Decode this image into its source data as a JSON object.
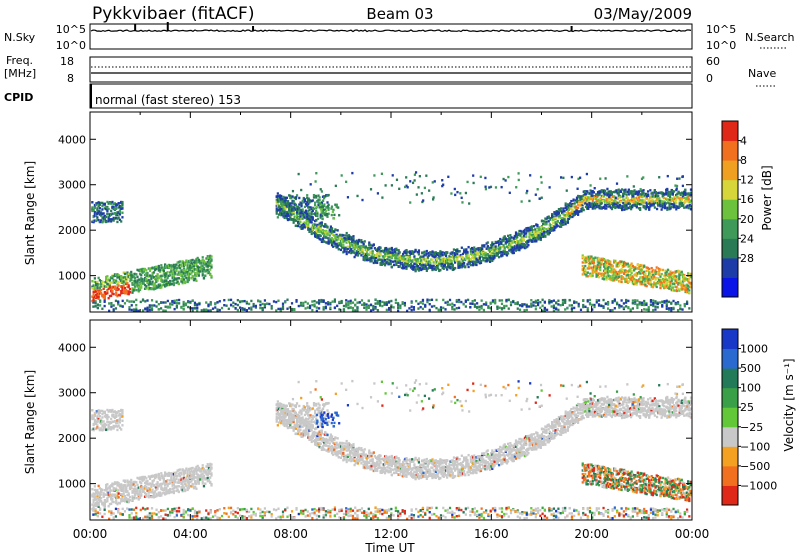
{
  "header": {
    "station": "Pykkvibaer (fitACF)",
    "beam": "Beam 03",
    "date": "03/May/2009"
  },
  "nsky_panel": {
    "left_label": "N.Sky",
    "right_label": "N.Search",
    "y_ticks": [
      "10^5",
      "10^0"
    ]
  },
  "freq_panel": {
    "left_label_line1": "Freq.",
    "left_label_line2": "[MHz]",
    "right_label": "Nave",
    "left_ticks": [
      "18",
      "8"
    ],
    "right_ticks": [
      "60",
      "0"
    ]
  },
  "cpid_panel": {
    "label": "CPID",
    "mode_text": "normal (fast stereo) 153"
  },
  "chart_data": [
    {
      "type": "heatmap",
      "title": "",
      "ylabel": "Slant Range [km]",
      "xlabel": "",
      "x_ticks": [
        "00:00",
        "04:00",
        "08:00",
        "12:00",
        "16:00",
        "20:00",
        "00:00"
      ],
      "y_ticks": [
        "1000",
        "2000",
        "3000",
        "4000"
      ],
      "ylim": [
        200,
        4600
      ],
      "xlim_hours": [
        0,
        24
      ],
      "colorbar": {
        "label": "Power [dB]",
        "ticks": [
          "4",
          "8",
          "12",
          "16",
          "20",
          "24",
          "28"
        ],
        "colors": [
          "#0a14e6",
          "#1e3ca8",
          "#2a7a55",
          "#3f9a5a",
          "#6cc23c",
          "#d6d63a",
          "#f0a020",
          "#f07020",
          "#e02818"
        ]
      }
    },
    {
      "type": "heatmap",
      "title": "",
      "ylabel": "Slant Range [km]",
      "xlabel": "Time UT",
      "x_ticks": [
        "00:00",
        "04:00",
        "08:00",
        "12:00",
        "16:00",
        "20:00",
        "00:00"
      ],
      "y_ticks": [
        "1000",
        "2000",
        "3000",
        "4000"
      ],
      "ylim": [
        200,
        4600
      ],
      "xlim_hours": [
        0,
        24
      ],
      "colorbar": {
        "label": "Velocity [m s⁻¹]",
        "ticks": [
          "1000",
          "500",
          "100",
          "25",
          "−25",
          "−100",
          "−500",
          "−1000"
        ],
        "colors": [
          "#1838c8",
          "#2a6ad0",
          "#227a58",
          "#3aa048",
          "#62c838",
          "#c8c8c8",
          "#f4a020",
          "#f07020",
          "#e02818"
        ]
      }
    }
  ]
}
